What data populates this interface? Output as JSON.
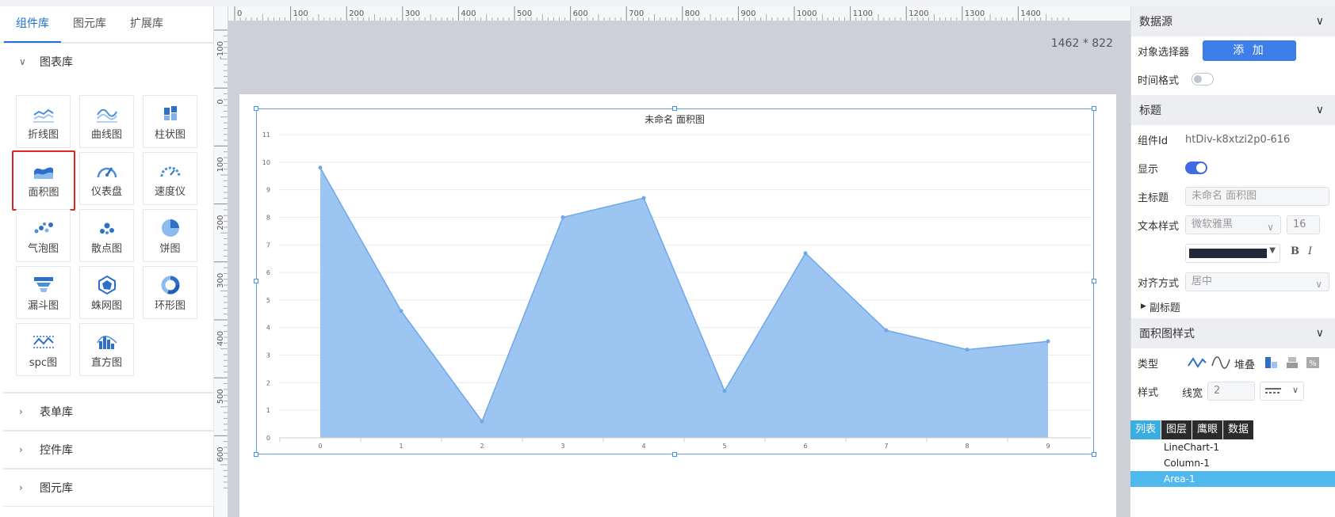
{
  "left_panel": {
    "tabs": [
      "组件库",
      "图元库",
      "扩展库"
    ],
    "sections": {
      "chart": "图表库",
      "form": "表单库",
      "control": "控件库",
      "graphic": "图元库"
    },
    "items": [
      {
        "label": "折线图",
        "icon": "line-chart-icon"
      },
      {
        "label": "曲线图",
        "icon": "curve-chart-icon"
      },
      {
        "label": "柱状图",
        "icon": "bar-chart-icon"
      },
      {
        "label": "面积图",
        "icon": "area-chart-icon"
      },
      {
        "label": "仪表盘",
        "icon": "gauge-icon"
      },
      {
        "label": "速度仪",
        "icon": "speedometer-icon"
      },
      {
        "label": "气泡图",
        "icon": "bubble-chart-icon"
      },
      {
        "label": "散点图",
        "icon": "scatter-chart-icon"
      },
      {
        "label": "饼图",
        "icon": "pie-chart-icon"
      },
      {
        "label": "漏斗图",
        "icon": "funnel-chart-icon"
      },
      {
        "label": "蛛网图",
        "icon": "radar-chart-icon"
      },
      {
        "label": "环形图",
        "icon": "donut-chart-icon"
      },
      {
        "label": "spc图",
        "icon": "spc-chart-icon"
      },
      {
        "label": "直方图",
        "icon": "histogram-icon"
      }
    ],
    "selected_item": "面积图"
  },
  "canvas": {
    "size_label": "1462 * 822",
    "hruler_ticks": [
      "0",
      "100",
      "200",
      "300",
      "400",
      "500",
      "600",
      "700",
      "800",
      "900",
      "1000",
      "1100",
      "1200",
      "1300",
      "1400"
    ],
    "vruler_ticks": [
      "-100",
      "0",
      "100",
      "200",
      "300",
      "400",
      "500",
      "600"
    ]
  },
  "chart_data": {
    "type": "area",
    "title": "未命名 面积图",
    "x": [
      0,
      1,
      2,
      3,
      4,
      5,
      6,
      7,
      8,
      9
    ],
    "series": [
      {
        "values": [
          9.8,
          4.6,
          0.6,
          8.0,
          8.7,
          1.7,
          6.7,
          3.9,
          3.2,
          3.5
        ],
        "color": "#8cbbee"
      }
    ],
    "ylim": [
      0,
      11
    ],
    "yticks": [
      "0",
      "1",
      "2",
      "3",
      "4",
      "5",
      "6",
      "7",
      "8",
      "9",
      "10",
      "11"
    ],
    "xticks": [
      "0",
      "1",
      "2",
      "3",
      "4",
      "5",
      "6",
      "7",
      "8",
      "9"
    ],
    "grid": true,
    "legend": "none"
  },
  "right_panel": {
    "datasource": {
      "header": "数据源",
      "object_selector_label": "对象选择器",
      "add_button": "添 加",
      "time_format_label": "时间格式"
    },
    "title_section": {
      "header": "标题",
      "component_id_label": "组件Id",
      "component_id": "htDiv-k8xtzi2p0-616",
      "show_label": "显示",
      "main_title_label": "主标题",
      "main_title_value": "未命名 面积图",
      "text_style_label": "文本样式",
      "font_value": "微软雅黑",
      "font_size": "16",
      "text_color": "#222a3a",
      "bold_label": "B",
      "italic_label": "I",
      "align_label": "对齐方式",
      "align_value": "居中",
      "subtitle_label": "副标题"
    },
    "area_style": {
      "header": "面积图样式",
      "type_label": "类型",
      "stack_label": "堆叠",
      "style_label": "样式",
      "line_width_label": "线宽",
      "line_width_value": "2"
    }
  },
  "list_popup": {
    "tabs": [
      "列表",
      "图层",
      "鹰眼",
      "数据"
    ],
    "items": [
      "LineChart-1",
      "Column-1",
      "Area-1"
    ],
    "selected": "Area-1"
  }
}
